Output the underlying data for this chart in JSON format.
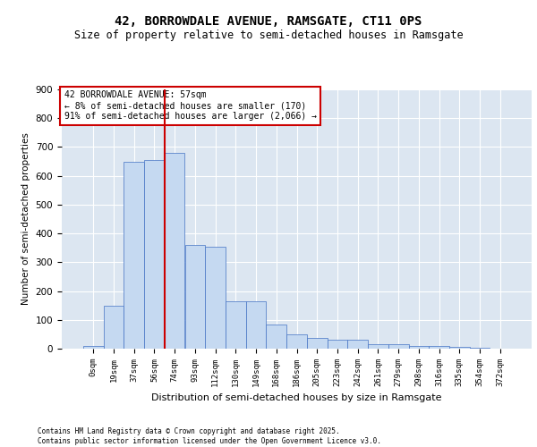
{
  "title1": "42, BORROWDALE AVENUE, RAMSGATE, CT11 0PS",
  "title2": "Size of property relative to semi-detached houses in Ramsgate",
  "xlabel": "Distribution of semi-detached houses by size in Ramsgate",
  "ylabel": "Number of semi-detached properties",
  "annotation_title": "42 BORROWDALE AVENUE: 57sqm",
  "annotation_line1": "← 8% of semi-detached houses are smaller (170)",
  "annotation_line2": "91% of semi-detached houses are larger (2,066) →",
  "footer": "Contains HM Land Registry data © Crown copyright and database right 2025.\nContains public sector information licensed under the Open Government Licence v3.0.",
  "bin_labels": [
    "0sqm",
    "19sqm",
    "37sqm",
    "56sqm",
    "74sqm",
    "93sqm",
    "112sqm",
    "130sqm",
    "149sqm",
    "168sqm",
    "186sqm",
    "205sqm",
    "223sqm",
    "242sqm",
    "261sqm",
    "279sqm",
    "298sqm",
    "316sqm",
    "335sqm",
    "354sqm",
    "372sqm"
  ],
  "bar_values": [
    10,
    150,
    650,
    655,
    680,
    360,
    355,
    165,
    165,
    85,
    50,
    38,
    30,
    30,
    15,
    15,
    10,
    10,
    5,
    4,
    0
  ],
  "bar_color": "#c5d9f1",
  "bar_edge_color": "#4472c4",
  "red_line_x": 3.5,
  "red_line_color": "#cc0000",
  "background_color": "#dce6f1",
  "grid_color": "#ffffff",
  "ylim": [
    0,
    900
  ],
  "yticks": [
    0,
    100,
    200,
    300,
    400,
    500,
    600,
    700,
    800,
    900
  ]
}
